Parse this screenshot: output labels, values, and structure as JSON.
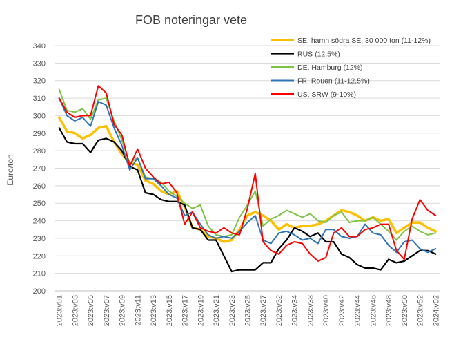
{
  "chart_data": {
    "type": "line",
    "title": "FOB noteringar vete",
    "xlabel": "",
    "ylabel": "Euro/ton",
    "ylim": [
      200,
      340
    ],
    "yticks": [
      200,
      210,
      220,
      230,
      240,
      250,
      260,
      270,
      280,
      290,
      300,
      310,
      320,
      330,
      340
    ],
    "grid": "horizontal",
    "legend_position": "top-right",
    "categories": [
      "2023:v01",
      "2023:v02",
      "2023:v03",
      "2023:v04",
      "2023:v05",
      "2023:v06",
      "2023:v07",
      "2023:v08",
      "2023:v09",
      "2023:v10",
      "2023:v11",
      "2023:v12",
      "2023:v13",
      "2023:v14",
      "2023:v15",
      "2023:v16",
      "2023:v17",
      "2023:v18",
      "2023:v19",
      "2023:v20",
      "2023:v21",
      "2023:v22",
      "2023:v23",
      "2023:v24",
      "2023:v25",
      "2023:v26",
      "2023:v27",
      "2023:v28",
      "2023:v32",
      "2023:v33",
      "2023:v34",
      "2023:v35",
      "2023:v38",
      "2023:v39",
      "2023:v40",
      "2023:v41",
      "2023:v42",
      "2023:v43",
      "2023:v44",
      "2023:v45",
      "2023:v46",
      "2023:v47",
      "2023:v48",
      "2023:v49",
      "2023:v50",
      "2023:v51",
      "2023:v52",
      "2024:v01",
      "2024:v02"
    ],
    "xtick_labels": [
      "2023:v01",
      "2023:v03",
      "2023:v05",
      "2023:v07",
      "2023:v09",
      "2023:v11",
      "2023:v13",
      "2023:v15",
      "2023:v17",
      "2023:v19",
      "2023:v21",
      "2023:v23",
      "2023:v25",
      "2023:v27",
      "2023:v32",
      "2023:v34",
      "2023:v38",
      "2023:v40",
      "2023:v42",
      "2023:v44",
      "2023:v46",
      "2023:v48",
      "2023:v50",
      "2023:v52",
      "2024:v02"
    ],
    "series": [
      {
        "name": "SE, hamn södra SE, 30 000 ton (11-12%)",
        "color": "#FFC000",
        "width": 3.5,
        "values": [
          299,
          291,
          290,
          287,
          289,
          293,
          294,
          285,
          278,
          273,
          272,
          263,
          261,
          257,
          255,
          257,
          248,
          236,
          235,
          231,
          230,
          228,
          229,
          235,
          243,
          245,
          243,
          240,
          235,
          238,
          236,
          237,
          237,
          238,
          240,
          243,
          246,
          245,
          243,
          240,
          242,
          240,
          241,
          233,
          236,
          239,
          239,
          236,
          234
        ]
      },
      {
        "name": "RUS (12,5%)",
        "color": "#000000",
        "width": 2.2,
        "values": [
          293,
          285,
          284,
          284,
          279,
          286,
          287,
          285,
          280,
          271,
          269,
          256,
          255,
          252,
          251,
          251,
          249,
          236,
          235,
          229,
          229,
          220,
          211,
          212,
          212,
          212,
          216,
          216,
          224,
          229,
          236,
          234,
          231,
          233,
          228,
          228,
          221,
          219,
          215,
          213,
          213,
          212,
          218,
          216,
          217,
          220,
          223,
          223,
          221
        ]
      },
      {
        "name": "DE, Hamburg (12%)",
        "color": "#7DC444",
        "width": 2,
        "values": [
          315,
          303,
          302,
          304,
          298,
          309,
          310,
          297,
          286,
          273,
          276,
          265,
          264,
          262,
          257,
          254,
          250,
          247,
          249,
          237,
          232,
          231,
          232,
          242,
          249,
          257,
          237,
          241,
          243,
          246,
          244,
          242,
          244,
          240,
          239,
          243,
          245,
          239,
          240,
          240,
          242,
          238,
          234,
          229,
          234,
          237,
          234,
          232,
          233
        ]
      },
      {
        "name": "FR, Rouen (11-12,5%)",
        "color": "#2E75B6",
        "width": 2,
        "values": [
          310,
          300,
          297,
          299,
          294,
          308,
          306,
          293,
          283,
          269,
          276,
          264,
          264,
          260,
          255,
          253,
          243,
          245,
          238,
          232,
          230,
          231,
          230,
          234,
          239,
          243,
          229,
          227,
          233,
          234,
          232,
          229,
          230,
          227,
          235,
          235,
          231,
          230,
          231,
          238,
          233,
          232,
          226,
          222,
          228,
          229,
          224,
          222,
          224
        ]
      },
      {
        "name": "US, SRW (9-10%)",
        "color": "#FF0000",
        "width": 2,
        "values": [
          310,
          302,
          299,
          300,
          300,
          317,
          313,
          295,
          289,
          271,
          281,
          270,
          265,
          261,
          262,
          256,
          238,
          245,
          236,
          234,
          233,
          236,
          233,
          232,
          247,
          267,
          228,
          223,
          221,
          226,
          228,
          227,
          221,
          217,
          219,
          233,
          236,
          231,
          231,
          235,
          236,
          238,
          238,
          223,
          218,
          241,
          252,
          246,
          243
        ]
      }
    ]
  }
}
